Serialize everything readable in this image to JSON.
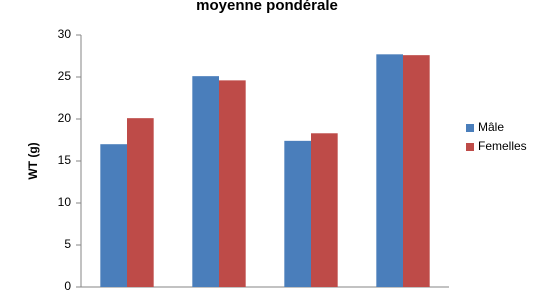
{
  "chart_data": {
    "type": "bar",
    "title": "moyenne pondérale",
    "y_label": "WT (g)",
    "categories": [
      null,
      null,
      null,
      null
    ],
    "series": [
      {
        "name": "Mâle",
        "color": "#4a7ebb",
        "values": [
          17.0,
          25.1,
          17.4,
          27.7
        ]
      },
      {
        "name": "Femelles",
        "color": "#be4b48",
        "values": [
          20.1,
          24.6,
          18.3,
          27.6
        ]
      }
    ],
    "ylim": [
      0,
      30
    ],
    "yticks": [
      0,
      5,
      10,
      15,
      20,
      25,
      30
    ],
    "grid": false,
    "legend": "right"
  }
}
